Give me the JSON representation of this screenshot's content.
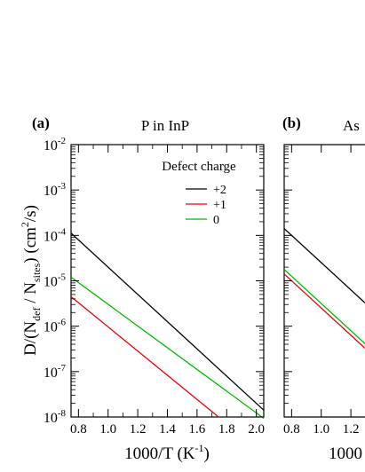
{
  "chart_data": [
    {
      "type": "line",
      "panel_label": "(a)",
      "title": "P in InP",
      "xlabel_text": "1000/T (K",
      "xlabel_sup": "-1",
      "xlabel_close": ")",
      "ylabel_text": "D/(N",
      "ylabel_sub1": "def",
      "ylabel_mid": " / N",
      "ylabel_sub2": "sites",
      "ylabel_tail": ") (cm",
      "ylabel_sup": "2",
      "ylabel_end": "/s)",
      "y_scale": "log",
      "xlim": [
        0.75,
        2.05
      ],
      "ylim_exponents": [
        -8,
        -2
      ],
      "x_ticks": [
        "0.8",
        "1.0",
        "1.2",
        "1.4",
        "1.6",
        "1.8",
        "2.0"
      ],
      "y_tick_base": "10",
      "y_tick_exponents": [
        "-8",
        "-7",
        "-6",
        "-5",
        "-4",
        "-3",
        "-2"
      ],
      "legend_title": "Defect charge",
      "legend_position": "top-right",
      "series": [
        {
          "name": "+2",
          "color": "#000000",
          "x": [
            0.75,
            2.05
          ],
          "log10_y": [
            -3.95,
            -7.85
          ]
        },
        {
          "name": "+1",
          "color": "#e8000b",
          "x": [
            0.75,
            1.745
          ],
          "log10_y": [
            -5.35,
            -8.0
          ]
        },
        {
          "name": "0",
          "color": "#00b800",
          "x": [
            0.75,
            2.05
          ],
          "log10_y": [
            -4.92,
            -8.03
          ]
        }
      ]
    },
    {
      "type": "line",
      "panel_label": "(b)",
      "title": "As",
      "xlabel_text": "1000",
      "y_scale": "log",
      "x_ticks": [
        "0.8",
        "1.0",
        "1.2"
      ],
      "series": [
        {
          "color": "#000000",
          "log10_y_at_start": -3.85
        },
        {
          "color": "#e8000b",
          "log10_y_at_start": -4.85
        },
        {
          "color": "#00b800",
          "log10_y_at_start": -4.75
        }
      ]
    }
  ]
}
